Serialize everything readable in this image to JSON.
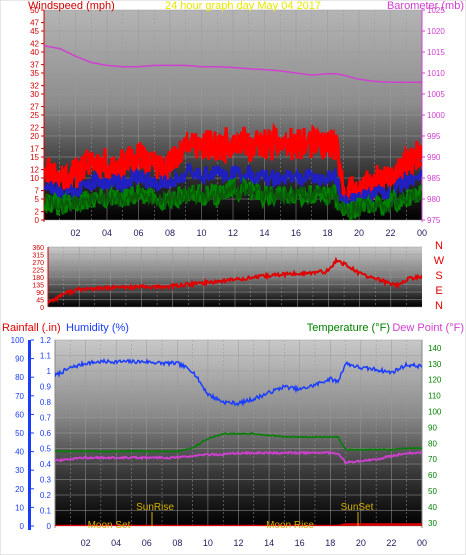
{
  "header": {
    "left_title": "Windspeed (mph)",
    "center_title": "24 hour graph day   May 04 2017",
    "right_title": "Barometer (mb)"
  },
  "bottom_header": {
    "rainfall": "Rainfall (.in)",
    "humidity": "Humidity (%)",
    "temperature": "Temperature (°F)",
    "dewpoint": "Dew Point (°F)"
  },
  "direction_letters": [
    "N",
    "W",
    "S",
    "E",
    "N"
  ],
  "x_ticks": [
    "02",
    "04",
    "06",
    "08",
    "10",
    "12",
    "14",
    "16",
    "18",
    "20",
    "22",
    "00"
  ],
  "annotations": {
    "sunrise": "SunRise",
    "sunset": "SunSet",
    "moonset": "Moon Set",
    "moonrise": "Moon Rise"
  },
  "colors": {
    "barometer": "#d040d0",
    "gust": "#ff0000",
    "windspeed": "#2020c0",
    "avg_wind": "#008000",
    "direction": "#e00000",
    "humidity": "#1a3cff",
    "temperature": "#008000",
    "dewpoint": "#d040d0",
    "rainfall": "#e00000",
    "annotation": "#d6b000"
  },
  "chart_data": [
    {
      "type": "line",
      "title": "24 hour graph day   May 04 2017",
      "xlabel": "",
      "ylabel": "Windspeed (mph)",
      "y2label": "Barometer (mb)",
      "ylim": [
        0,
        50
      ],
      "y2lim": [
        975,
        1025
      ],
      "yticks": [
        0,
        2,
        5,
        7,
        10,
        12,
        15,
        17,
        20,
        22,
        25,
        27,
        30,
        32,
        35,
        37,
        40,
        42,
        45,
        47,
        50
      ],
      "y2ticks": [
        975,
        980,
        985,
        990,
        995,
        1000,
        1005,
        1010,
        1015,
        1020,
        1025
      ],
      "grid": true,
      "x": [
        0,
        1,
        2,
        3,
        4,
        5,
        6,
        7,
        8,
        9,
        10,
        11,
        12,
        13,
        14,
        15,
        16,
        17,
        18,
        18.5,
        19,
        20,
        21,
        22,
        23,
        24
      ],
      "series": [
        {
          "axis": "right",
          "values": [
            1016.5,
            1015.8,
            1014.0,
            1012.5,
            1011.8,
            1011.5,
            1011.5,
            1011.8,
            1011.8,
            1011.8,
            1011.5,
            1011.5,
            1011.3,
            1011.0,
            1010.8,
            1010.5,
            1010.0,
            1009.5,
            1009.8,
            1009.8,
            1009.5,
            1008.5,
            1008.0,
            1007.8,
            1007.8,
            1007.8
          ]
        },
        {
          "axis": "left",
          "values": [
            13,
            10,
            11,
            14,
            13,
            13,
            15,
            13,
            13,
            18,
            18,
            17,
            19,
            18,
            18,
            18,
            18,
            18,
            18,
            18,
            7,
            7,
            9,
            10,
            13,
            16
          ]
        },
        {
          "axis": "left",
          "values": [
            9,
            6,
            7,
            9,
            9,
            9,
            10,
            9,
            9,
            11,
            11,
            11,
            11,
            11,
            10,
            10,
            10,
            10,
            10,
            10,
            4,
            5,
            6,
            6,
            9,
            10
          ]
        },
        {
          "axis": "left",
          "values": [
            5,
            3,
            4,
            5,
            5,
            5,
            6,
            5,
            5,
            6,
            6,
            6,
            7,
            7,
            6,
            6,
            6,
            6,
            6,
            6,
            2,
            3,
            3,
            4,
            5,
            6
          ]
        }
      ]
    },
    {
      "type": "line",
      "xlabel": "",
      "ylabel": "",
      "ylim": [
        0,
        360
      ],
      "yticks": [
        0,
        45,
        90,
        135,
        180,
        225,
        270,
        315,
        360
      ],
      "grid": true,
      "x": [
        0,
        0.5,
        1,
        2,
        3,
        4,
        5,
        6,
        7,
        8,
        9,
        10,
        11,
        12,
        13,
        14,
        15,
        16,
        17,
        18,
        18.5,
        19,
        19.5,
        20,
        21,
        22,
        22.5,
        23,
        24
      ],
      "values": [
        30,
        50,
        80,
        105,
        110,
        115,
        118,
        120,
        118,
        125,
        135,
        145,
        155,
        165,
        175,
        185,
        195,
        200,
        205,
        215,
        280,
        260,
        230,
        200,
        170,
        140,
        130,
        165,
        185
      ]
    },
    {
      "type": "line",
      "xlabel": "",
      "ylabel": "Humidity (%)",
      "y2label": "Temperature (°F)",
      "ylim": [
        0,
        1.2
      ],
      "yticks": [
        0,
        0.1,
        0.2,
        0.3,
        0.4,
        0.5,
        0.6,
        0.7,
        0.8,
        0.9,
        1,
        1.1,
        1.2
      ],
      "y2lim": [
        28,
        145
      ],
      "y2ticks": [
        30,
        40,
        50,
        60,
        70,
        80,
        90,
        100,
        110,
        120,
        130,
        140
      ],
      "grid": true,
      "x": [
        0,
        1,
        2,
        3,
        4,
        5,
        6,
        7,
        8,
        9,
        10,
        11,
        12,
        13,
        14,
        15,
        16,
        17,
        18,
        18.5,
        19,
        20,
        21,
        22,
        23,
        24
      ],
      "series": [
        {
          "name": "Humidity (%)",
          "axis": "left",
          "values": [
            0.97,
            1.02,
            1.05,
            1.06,
            1.06,
            1.06,
            1.06,
            1.05,
            1.05,
            1.0,
            0.85,
            0.8,
            0.79,
            0.82,
            0.86,
            0.9,
            0.88,
            0.91,
            0.95,
            0.93,
            1.05,
            1.02,
            1.01,
            0.99,
            1.04,
            1.03
          ]
        },
        {
          "name": "Temperature (°F)",
          "axis": "right",
          "values": [
            75,
            75,
            75,
            75,
            75,
            75,
            75,
            75,
            75,
            77,
            83,
            86,
            86,
            86,
            85,
            84,
            84,
            84,
            84,
            84,
            76,
            76,
            76,
            76,
            77,
            77
          ]
        },
        {
          "name": "Dew Point (°F)",
          "axis": "right",
          "values": [
            69,
            70,
            71,
            71,
            71,
            71,
            71,
            71,
            71,
            72,
            73,
            73,
            74,
            74,
            74,
            74,
            74,
            74,
            74,
            74,
            68,
            69,
            70,
            72,
            74,
            74
          ]
        },
        {
          "name": "Rainfall (.in)",
          "axis": "left",
          "values": [
            0,
            0,
            0,
            0,
            0,
            0,
            0,
            0,
            0,
            0,
            0,
            0,
            0,
            0,
            0,
            0,
            0,
            0,
            0,
            0,
            0.01,
            0.01,
            0.01,
            0.01,
            0.01,
            0.01
          ]
        }
      ]
    }
  ]
}
